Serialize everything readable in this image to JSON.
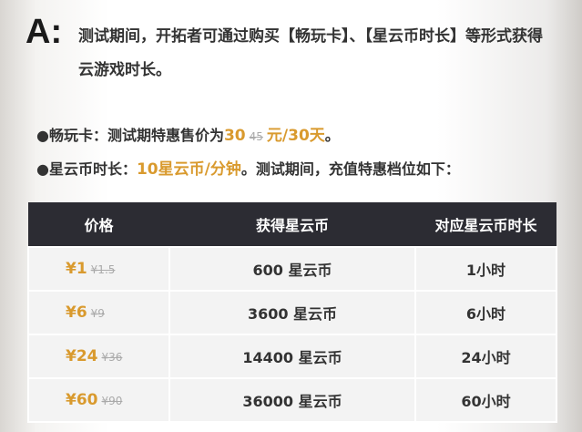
{
  "header": {
    "label": "A:",
    "text": "测试期间，开拓者可通过购买【畅玩卡】、【星云币时长】等形式获得云游戏时长。"
  },
  "bullets": [
    {
      "lead": "●畅玩卡：测试期特惠售价为",
      "price": "30",
      "old_price": "45",
      "unit": "元/30天",
      "tail": "。"
    },
    {
      "lead": "●星云币时长：",
      "price": "10星云币/分钟",
      "tail": "。测试期间，充值特惠档位如下："
    }
  ],
  "table": {
    "columns": [
      "价格",
      "获得星云币",
      "对应星云币时长"
    ],
    "rows": [
      {
        "price": "¥1",
        "old_price": "¥1.5",
        "coins": "600 星云币",
        "duration": "1小时"
      },
      {
        "price": "¥6",
        "old_price": "¥9",
        "coins": "3600 星云币",
        "duration": "6小时"
      },
      {
        "price": "¥24",
        "old_price": "¥36",
        "coins": "14400 星云币",
        "duration": "24小时"
      },
      {
        "price": "¥60",
        "old_price": "¥90",
        "coins": "36000 星云币",
        "duration": "60小时"
      }
    ]
  }
}
